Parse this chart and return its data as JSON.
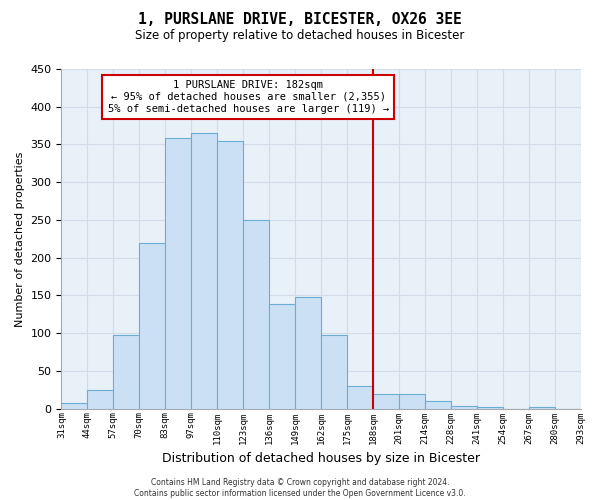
{
  "title": "1, PURSLANE DRIVE, BICESTER, OX26 3EE",
  "subtitle": "Size of property relative to detached houses in Bicester",
  "xlabel": "Distribution of detached houses by size in Bicester",
  "ylabel": "Number of detached properties",
  "bin_labels": [
    "31sqm",
    "44sqm",
    "57sqm",
    "70sqm",
    "83sqm",
    "97sqm",
    "110sqm",
    "123sqm",
    "136sqm",
    "149sqm",
    "162sqm",
    "175sqm",
    "188sqm",
    "201sqm",
    "214sqm",
    "228sqm",
    "241sqm",
    "254sqm",
    "267sqm",
    "280sqm",
    "293sqm"
  ],
  "bar_heights": [
    8,
    25,
    98,
    220,
    358,
    365,
    355,
    250,
    138,
    148,
    97,
    30,
    20,
    20,
    10,
    3,
    2,
    0,
    2,
    0
  ],
  "bar_color": "#cce0f5",
  "bar_edge_color": "#6aaed6",
  "highlight_line_color": "#cc0000",
  "annotation_text": "1 PURSLANE DRIVE: 182sqm\n← 95% of detached houses are smaller (2,355)\n5% of semi-detached houses are larger (119) →",
  "annotation_box_color": "#ffffff",
  "annotation_box_edge": "#cc0000",
  "ylim": [
    0,
    450
  ],
  "yticks": [
    0,
    50,
    100,
    150,
    200,
    250,
    300,
    350,
    400,
    450
  ],
  "footer_line1": "Contains HM Land Registry data © Crown copyright and database right 2024.",
  "footer_line2": "Contains public sector information licensed under the Open Government Licence v3.0.",
  "background_color": "#ffffff",
  "grid_color": "#d0dce8"
}
